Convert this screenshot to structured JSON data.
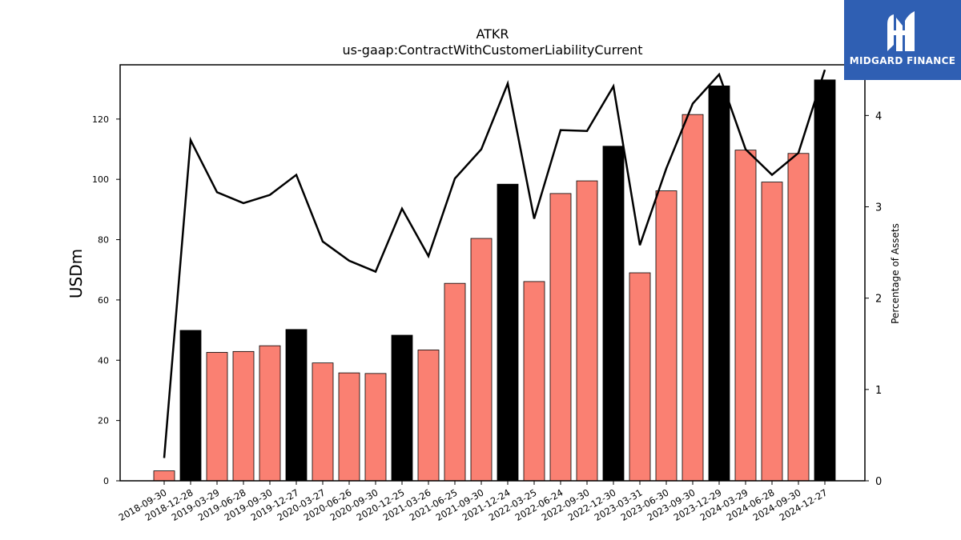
{
  "brand": {
    "name": "MIDGARD FINANCE",
    "logo_icon": "midgard-m-icon",
    "background": "#2f5fb3"
  },
  "chart_data": {
    "type": "bar",
    "title": "ATKR",
    "subtitle": "us-gaap:ContractWithCustomerLiabilityCurrent",
    "ylabel": "USDm",
    "y2label": "Percentage of Assets",
    "ylim": [
      0,
      138
    ],
    "y2lim": [
      0,
      4.555
    ],
    "yticks": [
      0,
      20,
      40,
      60,
      80,
      100,
      120
    ],
    "y2ticks": [
      0,
      1,
      2,
      3,
      4
    ],
    "grid": false,
    "categories": [
      "2018-09-30",
      "2018-12-28",
      "2019-03-29",
      "2019-06-28",
      "2019-09-30",
      "2019-12-27",
      "2020-03-27",
      "2020-06-26",
      "2020-09-30",
      "2020-12-25",
      "2021-03-26",
      "2021-06-25",
      "2021-09-30",
      "2021-12-24",
      "2022-03-25",
      "2022-06-24",
      "2022-09-30",
      "2022-12-30",
      "2023-03-31",
      "2023-06-30",
      "2023-09-30",
      "2023-12-29",
      "2024-03-29",
      "2024-06-28",
      "2024-09-30",
      "2024-12-27"
    ],
    "series": [
      {
        "type": "bar",
        "values": [
          3.3,
          49.9,
          42.6,
          42.9,
          44.8,
          50.2,
          39.1,
          35.8,
          35.6,
          48.3,
          43.4,
          65.5,
          80.4,
          98.4,
          66.1,
          95.3,
          99.5,
          111.0,
          69.0,
          96.2,
          121.5,
          131.0,
          109.7,
          99.1,
          108.6,
          133.0
        ],
        "colors": [
          "#fa8072",
          "#000000",
          "#fa8072",
          "#fa8072",
          "#fa8072",
          "#000000",
          "#fa8072",
          "#fa8072",
          "#fa8072",
          "#000000",
          "#fa8072",
          "#fa8072",
          "#fa8072",
          "#000000",
          "#fa8072",
          "#fa8072",
          "#fa8072",
          "#000000",
          "#fa8072",
          "#fa8072",
          "#fa8072",
          "#000000",
          "#fa8072",
          "#fa8072",
          "#fa8072",
          "#000000"
        ]
      },
      {
        "type": "line",
        "axis": "right",
        "color": "#000000",
        "values": [
          0.25,
          3.73,
          3.16,
          3.04,
          3.13,
          3.35,
          2.62,
          2.41,
          2.29,
          2.98,
          2.46,
          3.31,
          3.63,
          4.35,
          2.87,
          3.84,
          3.83,
          4.32,
          2.58,
          3.42,
          4.13,
          4.45,
          3.63,
          3.35,
          3.59,
          4.5
        ]
      }
    ]
  }
}
